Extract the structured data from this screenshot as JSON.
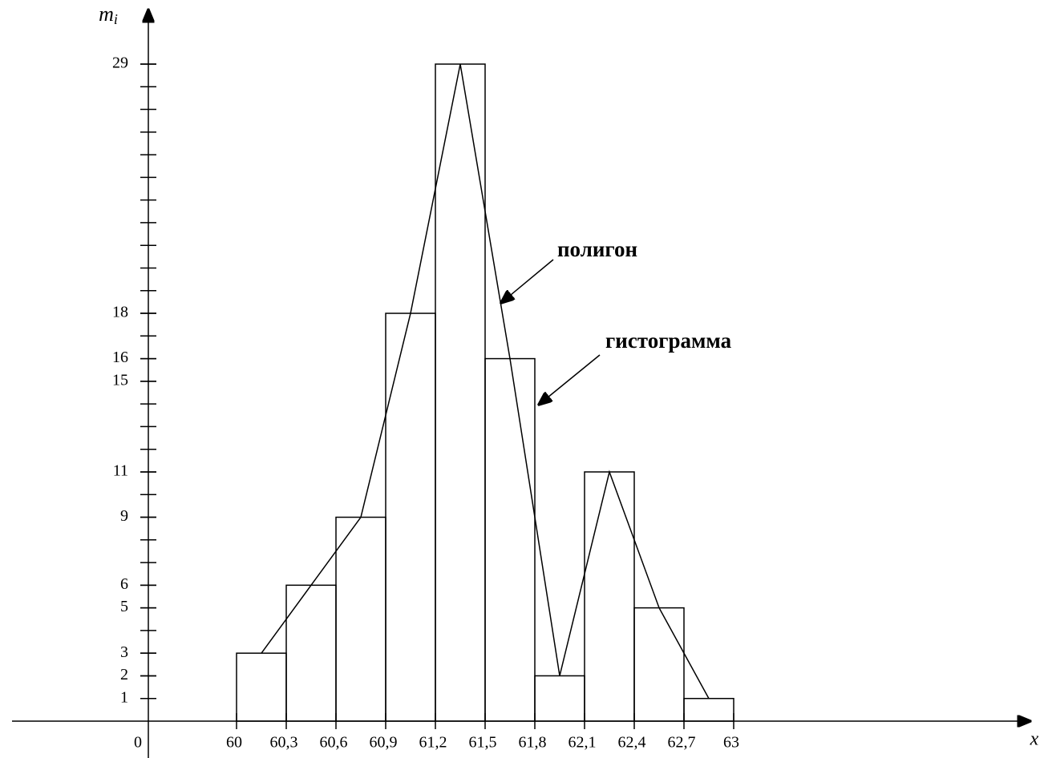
{
  "chart_data": {
    "type": "histogram",
    "bins": [
      60,
      60.3,
      60.6,
      60.9,
      61.2,
      61.5,
      61.8,
      62.1,
      62.4,
      62.7,
      63
    ],
    "values": [
      3,
      6,
      9,
      18,
      29,
      16,
      2,
      11,
      5,
      1
    ],
    "polygon": true,
    "color": "#000000",
    "xlim": [
      60,
      63
    ],
    "xticks": [
      60,
      {
        "value": 60.3,
        "label": "60,3"
      },
      {
        "value": 60.6,
        "label": "60,6"
      },
      {
        "value": 60.9,
        "label": "60,9"
      },
      {
        "value": 61.2,
        "label": "61,2"
      },
      {
        "value": 61.5,
        "label": "61,5"
      },
      {
        "value": 61.8,
        "label": "61,8"
      },
      {
        "value": 62.1,
        "label": "62,1"
      },
      {
        "value": 62.4,
        "label": "62,4"
      },
      {
        "value": 62.7,
        "label": "62,7"
      },
      63
    ],
    "ylim": [
      0,
      29
    ],
    "yticks": [
      1,
      2,
      3,
      5,
      6,
      9,
      11,
      15,
      16,
      18,
      29
    ],
    "yminor": [
      1,
      2,
      3,
      4,
      5,
      6,
      7,
      8,
      9,
      10,
      11,
      12,
      13,
      14,
      15,
      16,
      17,
      18,
      19,
      20,
      21,
      22,
      23,
      24,
      25,
      26,
      27,
      28,
      29
    ],
    "origin_label": "0",
    "xlabel": "x",
    "ylabel": "m",
    "ylabel_index": "i",
    "annotations": [
      "полигон",
      "гистограмма"
    ]
  }
}
